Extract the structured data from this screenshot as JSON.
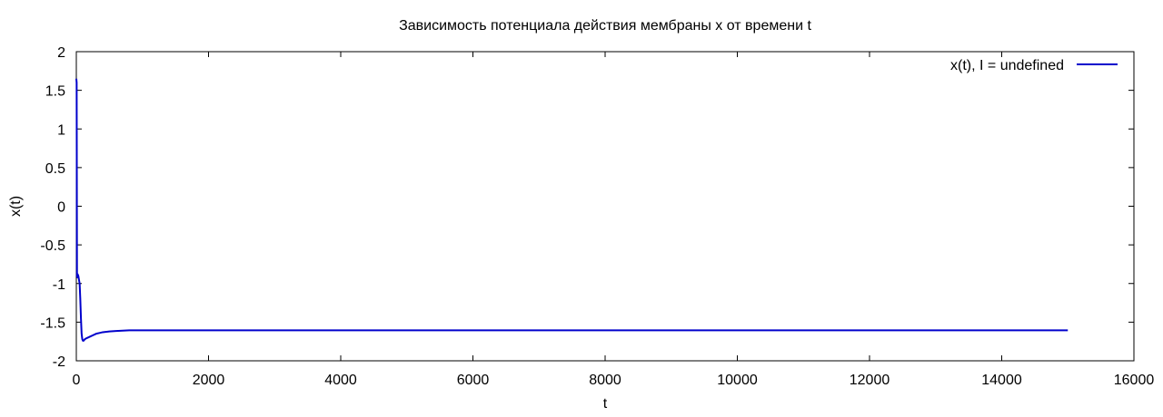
{
  "chart_data": {
    "type": "line",
    "title": "Зависимость потенциала действия мембраны x от времени t",
    "xlabel": "t",
    "ylabel": "x(t)",
    "xlim": [
      0,
      16000
    ],
    "ylim": [
      -2,
      2
    ],
    "xticks": [
      0,
      2000,
      4000,
      6000,
      8000,
      10000,
      12000,
      14000,
      16000
    ],
    "yticks": [
      -2,
      -1.5,
      -1,
      -0.5,
      0,
      0.5,
      1,
      1.5,
      2
    ],
    "xtick_labels": [
      "0",
      "2000",
      "4000",
      "6000",
      "8000",
      "10000",
      "12000",
      "14000",
      "16000"
    ],
    "ytick_labels": [
      "-2",
      "-1.5",
      "-1",
      "-0.5",
      "0",
      "0.5",
      "1",
      "1.5",
      "2"
    ],
    "grid": false,
    "legend_position": "top-right",
    "series": [
      {
        "name": "x(t), I = undefined",
        "color": "#0000cc",
        "x": [
          0,
          5,
          10,
          15,
          20,
          30,
          40,
          50,
          60,
          70,
          80,
          90,
          100,
          110,
          120,
          130,
          150,
          175,
          200,
          250,
          300,
          350,
          400,
          500,
          600,
          700,
          800,
          1000,
          2000,
          5000,
          10000,
          15000
        ],
        "y": [
          1.65,
          1.6,
          -0.9,
          -0.92,
          -0.88,
          -0.9,
          -0.95,
          -1.0,
          -1.2,
          -1.45,
          -1.65,
          -1.72,
          -1.74,
          -1.74,
          -1.73,
          -1.72,
          -1.71,
          -1.7,
          -1.69,
          -1.67,
          -1.65,
          -1.64,
          -1.63,
          -1.62,
          -1.615,
          -1.61,
          -1.605,
          -1.605,
          -1.605,
          -1.605,
          -1.605,
          -1.605
        ]
      }
    ]
  }
}
